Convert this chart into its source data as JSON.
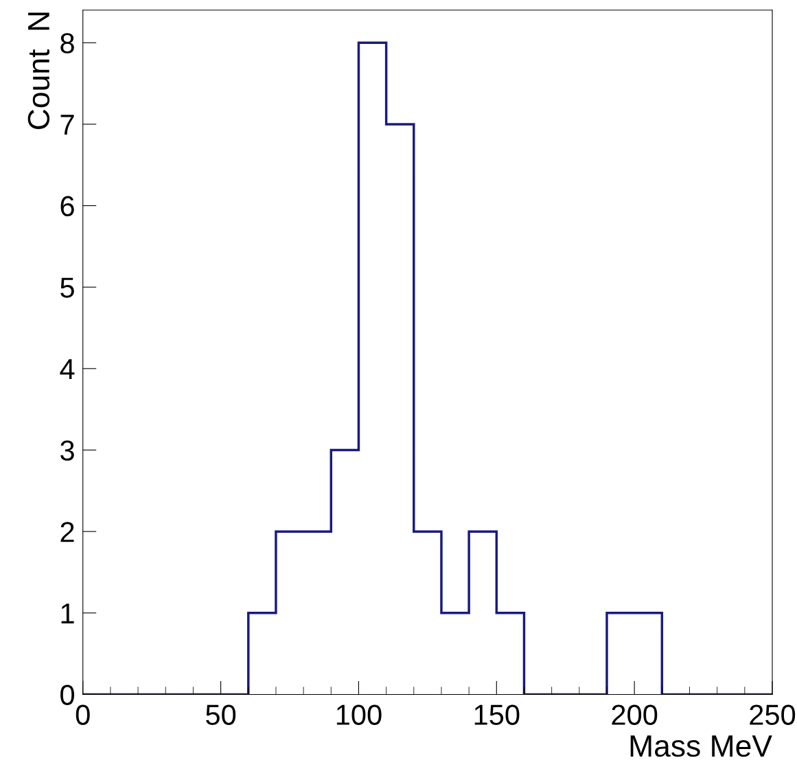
{
  "chart_data": {
    "type": "histogram",
    "xlabel": "Mass MeV",
    "ylabel": "Count  N",
    "color": "#1a1a80",
    "bins": [
      0,
      10,
      20,
      30,
      40,
      50,
      60,
      70,
      80,
      90,
      100,
      110,
      120,
      130,
      140,
      150,
      160,
      170,
      180,
      190,
      200,
      210,
      220,
      230,
      240,
      250
    ],
    "values": [
      0,
      0,
      0,
      0,
      0,
      0,
      1,
      2,
      2,
      3,
      8,
      7,
      2,
      1,
      2,
      1,
      0,
      0,
      0,
      1,
      1,
      0,
      0,
      0,
      0
    ],
    "xlim": [
      0,
      250
    ],
    "ylim": [
      0,
      8.4
    ],
    "xticks": [
      0,
      50,
      100,
      150,
      200,
      250
    ],
    "yticks": [
      0,
      1,
      2,
      3,
      4,
      5,
      6,
      7,
      8
    ],
    "grid": false
  }
}
